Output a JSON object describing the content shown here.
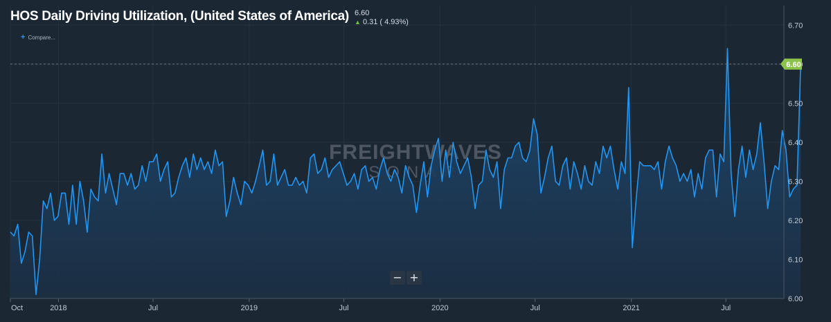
{
  "header": {
    "title": "HOS Daily Driving Utilization, (United States of America)",
    "last_value": "6.60",
    "change_arrow": "▲",
    "change_text": "0.31 ( 4.93%)"
  },
  "compare": {
    "label": "Compare..."
  },
  "zoom": {
    "minus_label": "−",
    "plus_label": "+"
  },
  "watermark": {
    "line1": "FREIGHTWAVES",
    "line2": "SONAR"
  },
  "current_badge": "6.60",
  "colors": {
    "background": "#1c2734",
    "line": "#2196f3",
    "area_top": "#1d4a73",
    "badge": "#8bc34a",
    "up": "#6fbf4a"
  },
  "chart_data": {
    "type": "area",
    "title": "HOS Daily Driving Utilization, (United States of America)",
    "xlabel": "",
    "ylabel": "",
    "ylim": [
      6.0,
      6.75
    ],
    "y_ticks": [
      6.0,
      6.1,
      6.2,
      6.3,
      6.4,
      6.5,
      6.6,
      6.7
    ],
    "y_tick_labels": [
      "6.00",
      "6.10",
      "6.20",
      "6.30",
      "6.40",
      "6.50",
      "6.60",
      "6.70"
    ],
    "x_ticks": [
      {
        "label": "Oct",
        "date": "2017-10-01"
      },
      {
        "label": "2018",
        "date": "2018-01-01"
      },
      {
        "label": "Jul",
        "date": "2018-07-01"
      },
      {
        "label": "2019",
        "date": "2019-01-01"
      },
      {
        "label": "Jul",
        "date": "2019-07-01"
      },
      {
        "label": "2020",
        "date": "2020-01-01"
      },
      {
        "label": "Jul",
        "date": "2020-07-01"
      },
      {
        "label": "2021",
        "date": "2021-01-01"
      },
      {
        "label": "Jul",
        "date": "2021-07-01"
      }
    ],
    "x_range": [
      "2017-10-01",
      "2021-10-20"
    ],
    "reference_line": 6.6,
    "grid": true,
    "series": [
      {
        "start_date": "2017-10-01",
        "interval": "weekly",
        "values": [
          6.17,
          6.16,
          6.19,
          6.09,
          6.12,
          6.17,
          6.16,
          6.01,
          6.1,
          6.25,
          6.23,
          6.27,
          6.2,
          6.21,
          6.27,
          6.27,
          6.19,
          6.29,
          6.19,
          6.3,
          6.25,
          6.17,
          6.28,
          6.26,
          6.25,
          6.37,
          6.27,
          6.32,
          6.28,
          6.24,
          6.32,
          6.32,
          6.29,
          6.32,
          6.28,
          6.29,
          6.34,
          6.3,
          6.35,
          6.35,
          6.37,
          6.3,
          6.33,
          6.35,
          6.26,
          6.27,
          6.31,
          6.34,
          6.36,
          6.31,
          6.37,
          6.33,
          6.36,
          6.33,
          6.35,
          6.32,
          6.38,
          6.34,
          6.35,
          6.21,
          6.25,
          6.31,
          6.27,
          6.24,
          6.3,
          6.29,
          6.27,
          6.3,
          6.34,
          6.38,
          6.29,
          6.3,
          6.37,
          6.29,
          6.31,
          6.33,
          6.29,
          6.29,
          6.31,
          6.29,
          6.3,
          6.27,
          6.36,
          6.37,
          6.32,
          6.33,
          6.36,
          6.31,
          6.33,
          6.34,
          6.35,
          6.32,
          6.29,
          6.3,
          6.32,
          6.28,
          6.33,
          6.34,
          6.3,
          6.31,
          6.28,
          6.33,
          6.36,
          6.32,
          6.3,
          6.33,
          6.31,
          6.27,
          6.34,
          6.31,
          6.29,
          6.22,
          6.29,
          6.35,
          6.26,
          6.34,
          6.38,
          6.41,
          6.3,
          6.38,
          6.31,
          6.4,
          6.35,
          6.32,
          6.34,
          6.36,
          6.31,
          6.23,
          6.29,
          6.3,
          6.38,
          6.33,
          6.31,
          6.35,
          6.23,
          6.33,
          6.36,
          6.36,
          6.39,
          6.4,
          6.36,
          6.35,
          6.38,
          6.46,
          6.42,
          6.27,
          6.31,
          6.36,
          6.39,
          6.3,
          6.29,
          6.34,
          6.36,
          6.28,
          6.35,
          6.32,
          6.28,
          6.34,
          6.3,
          6.29,
          6.35,
          6.32,
          6.39,
          6.36,
          6.39,
          6.33,
          6.28,
          6.35,
          6.32,
          6.54,
          6.13,
          6.25,
          6.35,
          6.34,
          6.34,
          6.34,
          6.33,
          6.35,
          6.28,
          6.35,
          6.39,
          6.36,
          6.34,
          6.3,
          6.32,
          6.3,
          6.33,
          6.26,
          6.32,
          6.28,
          6.36,
          6.38,
          6.38,
          6.26,
          6.37,
          6.35,
          6.64,
          6.32,
          6.21,
          6.33,
          6.39,
          6.31,
          6.38,
          6.33,
          6.37,
          6.45,
          6.35,
          6.23,
          6.3,
          6.34,
          6.33,
          6.43,
          6.38,
          6.26,
          6.28,
          6.29,
          6.6
        ]
      }
    ]
  }
}
